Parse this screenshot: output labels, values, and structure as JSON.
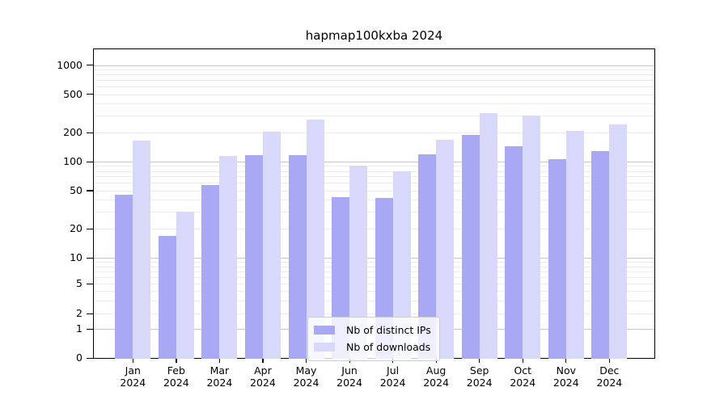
{
  "chart_data": {
    "type": "bar",
    "title": "hapmap100kxba 2024",
    "yscale": "symlog",
    "grid": true,
    "legend_position": "lower center",
    "categories": [
      "Jan",
      "Feb",
      "Mar",
      "Apr",
      "May",
      "Jun",
      "Jul",
      "Aug",
      "Sep",
      "Oct",
      "Nov",
      "Dec"
    ],
    "year": "2024",
    "series": [
      {
        "name": "Nb of distinct IPs",
        "color": "#a8a8f4",
        "values": [
          45,
          17,
          57,
          116,
          116,
          43,
          42,
          120,
          190,
          145,
          106,
          128
        ]
      },
      {
        "name": "Nb of downloads",
        "color": "#d8d8fa",
        "values": [
          165,
          30,
          115,
          205,
          275,
          90,
          80,
          170,
          320,
          300,
          207,
          245
        ]
      }
    ],
    "yticks": [
      0,
      1,
      2,
      5,
      10,
      20,
      50,
      100,
      200,
      500,
      1000
    ],
    "ylim": [
      0,
      1500
    ],
    "colors": {
      "major_grid": "#c6c6c6",
      "minor_grid": "#ececec",
      "spine": "#000000",
      "text": "#000000"
    }
  }
}
